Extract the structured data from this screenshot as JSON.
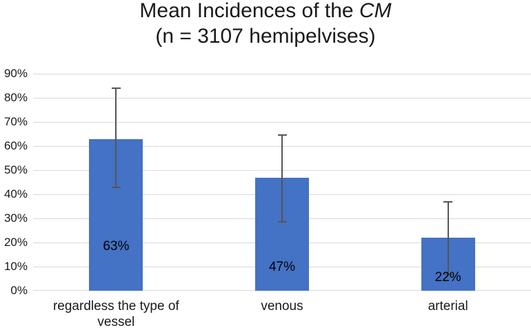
{
  "page": {
    "background_color": "#ffffff"
  },
  "chart_data": {
    "type": "bar",
    "title_main": "Mean Incidences of the ",
    "title_italic": "CM",
    "subtitle": "(n = 3107 hemipelvises)",
    "categories": [
      "regardless the type of vessel",
      "venous",
      "arterial"
    ],
    "values": [
      63,
      47,
      22
    ],
    "data_labels": [
      "63%",
      "47%",
      "22%"
    ],
    "error_bars": [
      {
        "low": 43,
        "high": 84
      },
      {
        "low": 28.5,
        "high": 64.5
      },
      {
        "low": 7,
        "high": 37
      }
    ],
    "y_ticks": [
      "0%",
      "10%",
      "20%",
      "30%",
      "40%",
      "50%",
      "60%",
      "70%",
      "80%",
      "90%"
    ],
    "ylim": [
      0,
      90
    ],
    "xlabel": "",
    "ylabel": "",
    "grid": true,
    "legend": "none",
    "bar_color": "#4472C4",
    "gridline_color": "#d9d9d9",
    "error_bar_color": "#555555",
    "text_color": "#1a1a1a",
    "label_center_pct": [
      18.3,
      9.7,
      5.4
    ]
  }
}
